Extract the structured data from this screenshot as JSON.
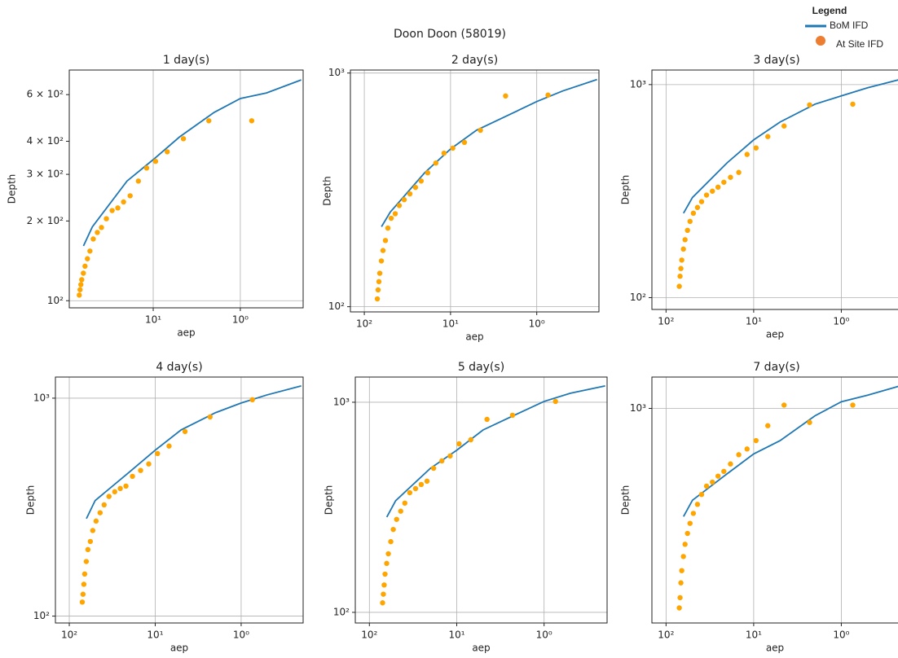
{
  "title": "Doon Doon (58019)",
  "legend_title": "Legend",
  "chart_data": [
    {
      "type": "line",
      "title": "1 day(s)",
      "xlabel": "aep",
      "ylabel": "Depth",
      "xscale": "log",
      "yscale": "log",
      "grid": true,
      "xlim": [
        92,
        0.19
      ],
      "ylim": [
        94,
        743
      ],
      "xticks": [
        {
          "value": 10,
          "label": "10¹"
        },
        {
          "value": 1,
          "label": "10⁰"
        }
      ],
      "yticks": [
        {
          "value": 100,
          "label": "10²"
        },
        {
          "value": 200,
          "label": "2 × 10²"
        },
        {
          "value": 300,
          "label": "3 × 10²"
        },
        {
          "value": 400,
          "label": "4 × 10²"
        },
        {
          "value": 600,
          "label": "6 × 10²"
        }
      ],
      "series": [
        {
          "name": "BoM IFD",
          "type": "line",
          "color": "#1f77b4",
          "x": [
            63.2,
            50,
            20,
            10,
            5,
            2,
            1,
            0.5,
            0.2
          ],
          "values": [
            161,
            190,
            283,
            341,
            415,
            514,
            580,
            609,
            682
          ]
        },
        {
          "name": "At Site IFD",
          "type": "scatter",
          "color": "#ffa500",
          "x": [
            70.6,
            69.2,
            67.7,
            66.2,
            63.4,
            60.7,
            56.9,
            53.3,
            48.8,
            43.8,
            39.3,
            34.5,
            29.6,
            25.5,
            21.9,
            18.4,
            14.8,
            11.9,
            9.4,
            6.9,
            4.5,
            2.3,
            0.74
          ],
          "values": [
            105,
            110,
            115,
            120,
            127,
            135,
            144,
            154,
            171,
            181,
            189,
            204,
            219,
            224,
            236,
            249,
            283,
            317,
            336,
            365,
            409,
            478,
            478
          ]
        }
      ]
    },
    {
      "type": "line",
      "title": "2 day(s)",
      "xlabel": "aep",
      "ylabel": "Depth",
      "xscale": "log",
      "yscale": "log",
      "grid": true,
      "xlim": [
        145,
        0.19
      ],
      "ylim": [
        95,
        1030
      ],
      "xticks": [
        {
          "value": 100,
          "label": "10²"
        },
        {
          "value": 10,
          "label": "10¹"
        },
        {
          "value": 1,
          "label": "10⁰"
        }
      ],
      "yticks": [
        {
          "value": 100,
          "label": "10²"
        },
        {
          "value": 1000,
          "label": "10³"
        }
      ],
      "series": [
        {
          "name": "BoM IFD",
          "type": "line",
          "color": "#1f77b4",
          "x": [
            63.2,
            50,
            20,
            10,
            5,
            2,
            1,
            0.5,
            0.2
          ],
          "values": [
            220,
            254,
            374,
            473,
            569,
            668,
            755,
            838,
            938
          ]
        },
        {
          "name": "At Site IFD",
          "type": "scatter",
          "color": "#ffa500",
          "x": [
            70.6,
            69.2,
            67.7,
            66.2,
            63.4,
            60.7,
            56.9,
            53.3,
            48.8,
            43.8,
            39.3,
            34.5,
            29.6,
            25.5,
            21.9,
            18.4,
            14.8,
            11.9,
            9.4,
            6.9,
            4.5,
            2.3,
            0.74
          ],
          "values": [
            108,
            118,
            128,
            139,
            157,
            174,
            192,
            217,
            239,
            250,
            271,
            287,
            304,
            324,
            345,
            374,
            412,
            454,
            477,
            505,
            569,
            798,
            805
          ]
        }
      ]
    },
    {
      "type": "line",
      "title": "3 day(s)",
      "xlabel": "aep",
      "ylabel": "Depth",
      "xscale": "log",
      "yscale": "log",
      "grid": true,
      "xlim": [
        145,
        0.19
      ],
      "ylim": [
        88,
        1170
      ],
      "xticks": [
        {
          "value": 100,
          "label": "10²"
        },
        {
          "value": 10,
          "label": "10¹"
        },
        {
          "value": 1,
          "label": "10⁰"
        }
      ],
      "yticks": [
        {
          "value": 100,
          "label": "10²"
        },
        {
          "value": 1000,
          "label": "10³"
        }
      ],
      "series": [
        {
          "name": "BoM IFD",
          "type": "line",
          "color": "#1f77b4",
          "x": [
            63.2,
            50,
            20,
            10,
            5,
            2,
            1,
            0.5,
            0.2
          ],
          "values": [
            249,
            295,
            430,
            550,
            667,
            809,
            885,
            966,
            1064
          ]
        },
        {
          "name": "At Site IFD",
          "type": "scatter",
          "color": "#ffa500",
          "x": [
            70.6,
            69.2,
            67.7,
            66.2,
            63.4,
            60.7,
            56.9,
            53.3,
            48.8,
            43.8,
            39.3,
            34.5,
            29.6,
            25.5,
            21.9,
            18.4,
            14.8,
            11.9,
            9.4,
            6.9,
            4.5,
            2.3,
            0.74
          ],
          "values": [
            113,
            126,
            137,
            150,
            169,
            187,
            207,
            228,
            249,
            265,
            282,
            303,
            316,
            330,
            348,
            367,
            387,
            470,
            504,
            570,
            639,
            803,
            809
          ]
        }
      ]
    },
    {
      "type": "line",
      "title": "4 day(s)",
      "xlabel": "aep",
      "ylabel": "Depth",
      "xscale": "log",
      "yscale": "log",
      "grid": true,
      "xlim": [
        145,
        0.19
      ],
      "ylim": [
        93,
        1250
      ],
      "xticks": [
        {
          "value": 100,
          "label": "10²"
        },
        {
          "value": 10,
          "label": "10¹"
        },
        {
          "value": 1,
          "label": "10⁰"
        }
      ],
      "yticks": [
        {
          "value": 100,
          "label": "10²"
        },
        {
          "value": 1000,
          "label": "10³"
        }
      ],
      "series": [
        {
          "name": "BoM IFD",
          "type": "line",
          "color": "#1f77b4",
          "x": [
            63.2,
            50,
            20,
            10,
            5,
            2,
            1,
            0.5,
            0.2
          ],
          "values": [
            280,
            339,
            458,
            577,
            715,
            857,
            950,
            1035,
            1138
          ]
        },
        {
          "name": "At Site IFD",
          "type": "scatter",
          "color": "#ffa500",
          "x": [
            70.6,
            69.2,
            67.7,
            66.2,
            63.4,
            60.7,
            56.9,
            53.3,
            48.8,
            43.8,
            39.3,
            34.5,
            29.6,
            25.5,
            21.9,
            18.4,
            14.8,
            11.9,
            9.4,
            6.9,
            4.5,
            2.3,
            0.74
          ],
          "values": [
            116,
            126,
            140,
            156,
            178,
            202,
            220,
            247,
            273,
            298,
            324,
            354,
            372,
            385,
            395,
            438,
            466,
            499,
            557,
            603,
            703,
            820,
            984
          ]
        }
      ]
    },
    {
      "type": "line",
      "title": "5 day(s)",
      "xlabel": "aep",
      "ylabel": "Depth",
      "xscale": "log",
      "yscale": "log",
      "grid": true,
      "xlim": [
        145,
        0.19
      ],
      "ylim": [
        89,
        1318
      ],
      "xticks": [
        {
          "value": 100,
          "label": "10²"
        },
        {
          "value": 10,
          "label": "10¹"
        },
        {
          "value": 1,
          "label": "10⁰"
        }
      ],
      "yticks": [
        {
          "value": 100,
          "label": "10²"
        },
        {
          "value": 1000,
          "label": "10³"
        }
      ],
      "series": [
        {
          "name": "BoM IFD",
          "type": "line",
          "color": "#1f77b4",
          "x": [
            63.2,
            50,
            20,
            10,
            5,
            2,
            1,
            0.5,
            0.2
          ],
          "values": [
            284,
            340,
            485,
            591,
            738,
            883,
            1009,
            1104,
            1196
          ]
        },
        {
          "name": "At Site IFD",
          "type": "scatter",
          "color": "#ffa500",
          "x": [
            70.6,
            69.2,
            67.7,
            66.2,
            63.4,
            60.7,
            56.9,
            53.3,
            48.8,
            43.8,
            39.3,
            34.5,
            29.6,
            25.5,
            21.9,
            18.4,
            14.8,
            11.9,
            9.4,
            6.9,
            4.5,
            2.3,
            0.74
          ],
          "values": [
            111,
            122,
            135,
            152,
            171,
            190,
            217,
            248,
            277,
            303,
            331,
            371,
            388,
            406,
            421,
            485,
            526,
            555,
            634,
            663,
            829,
            867,
            1009
          ]
        }
      ]
    },
    {
      "type": "line",
      "title": "7 day(s)",
      "xlabel": "aep",
      "ylabel": "Depth",
      "xscale": "log",
      "yscale": "log",
      "grid": true,
      "xlim": [
        145,
        0.19
      ],
      "ylim": [
        105,
        1390
      ],
      "xticks": [
        {
          "value": 100,
          "label": "10²"
        },
        {
          "value": 10,
          "label": "10¹"
        },
        {
          "value": 1,
          "label": "10⁰"
        }
      ],
      "yticks": [
        {
          "value": 1000,
          "label": "10³"
        }
      ],
      "series": [
        {
          "name": "BoM IFD",
          "type": "line",
          "color": "#1f77b4",
          "x": [
            63.2,
            50,
            20,
            10,
            5,
            2,
            1,
            0.5,
            0.2
          ],
          "values": [
            321,
            381,
            504,
            620,
            713,
            925,
            1072,
            1149,
            1276
          ]
        },
        {
          "name": "At Site IFD",
          "type": "scatter",
          "color": "#ffa500",
          "x": [
            70.6,
            69.2,
            67.7,
            66.2,
            63.4,
            60.7,
            56.9,
            53.3,
            48.8,
            43.8,
            39.3,
            34.5,
            29.6,
            25.5,
            21.9,
            18.4,
            14.8,
            11.9,
            9.4,
            6.9,
            4.5,
            2.3,
            0.74
          ],
          "values": [
            123,
            137,
            160,
            182,
            211,
            240,
            269,
            299,
            332,
            365,
            405,
            442,
            461,
            491,
            516,
            558,
            615,
            653,
            713,
            834,
            1035,
            863,
            1035
          ]
        }
      ]
    }
  ]
}
